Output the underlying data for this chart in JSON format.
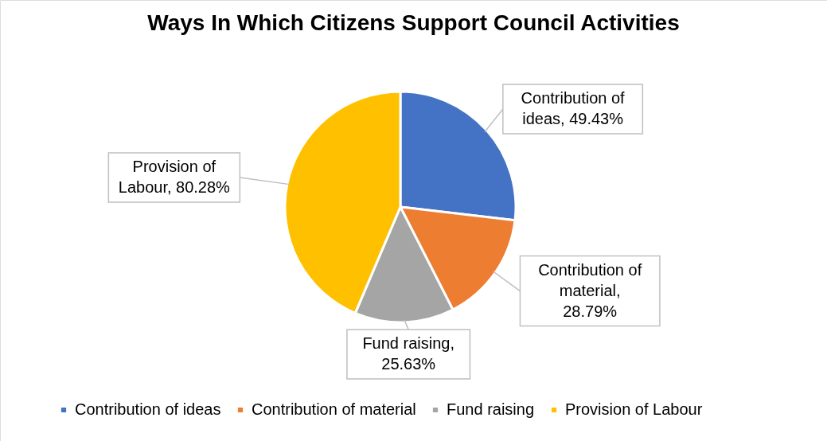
{
  "chart_data": {
    "type": "pie",
    "title": "Ways In Which Citizens Support Council Activities",
    "categories": [
      "Contribution of ideas",
      "Contribution of material",
      "Fund raising",
      "Provision of Labour"
    ],
    "values": [
      49.43,
      28.79,
      25.63,
      80.28
    ],
    "colors": [
      "#4472c4",
      "#ed7d31",
      "#a5a5a5",
      "#ffc000"
    ],
    "value_labels": [
      "Contribution of ideas, 49.43%",
      "Contribution of material, 28.79%",
      "Fund raising, 25.63%",
      "Provision of Labour, 80.28%"
    ],
    "legend": "bottom"
  }
}
